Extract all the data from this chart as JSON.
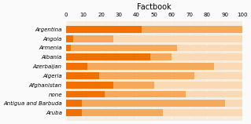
{
  "title": "Factbook",
  "categories": [
    "Argentina",
    "Angola",
    "Armenia",
    "Albania",
    "Azerbaijan",
    "Algeria",
    "Afghanistan",
    "none",
    "Antigua and Barbuda",
    "Aruba"
  ],
  "bar1_values": [
    43,
    4,
    3,
    48,
    12,
    19,
    27,
    22,
    9,
    9
  ],
  "bar2_values": [
    100,
    27,
    63,
    60,
    84,
    73,
    50,
    68,
    90,
    55
  ],
  "bar3_values": [
    100,
    100,
    100,
    100,
    100,
    100,
    100,
    100,
    100,
    100
  ],
  "color_dark": "#F07000",
  "color_mid": "#F5A95A",
  "color_light": "#FAD9B5",
  "background_color": "#FAFAFA",
  "plot_bg": "#F5EDE0",
  "xmin": 0,
  "xmax": 100,
  "xticks": [
    0,
    10,
    20,
    30,
    40,
    50,
    60,
    70,
    80,
    90,
    100
  ],
  "title_fontsize": 7,
  "tick_fontsize": 5,
  "label_fontsize": 5
}
